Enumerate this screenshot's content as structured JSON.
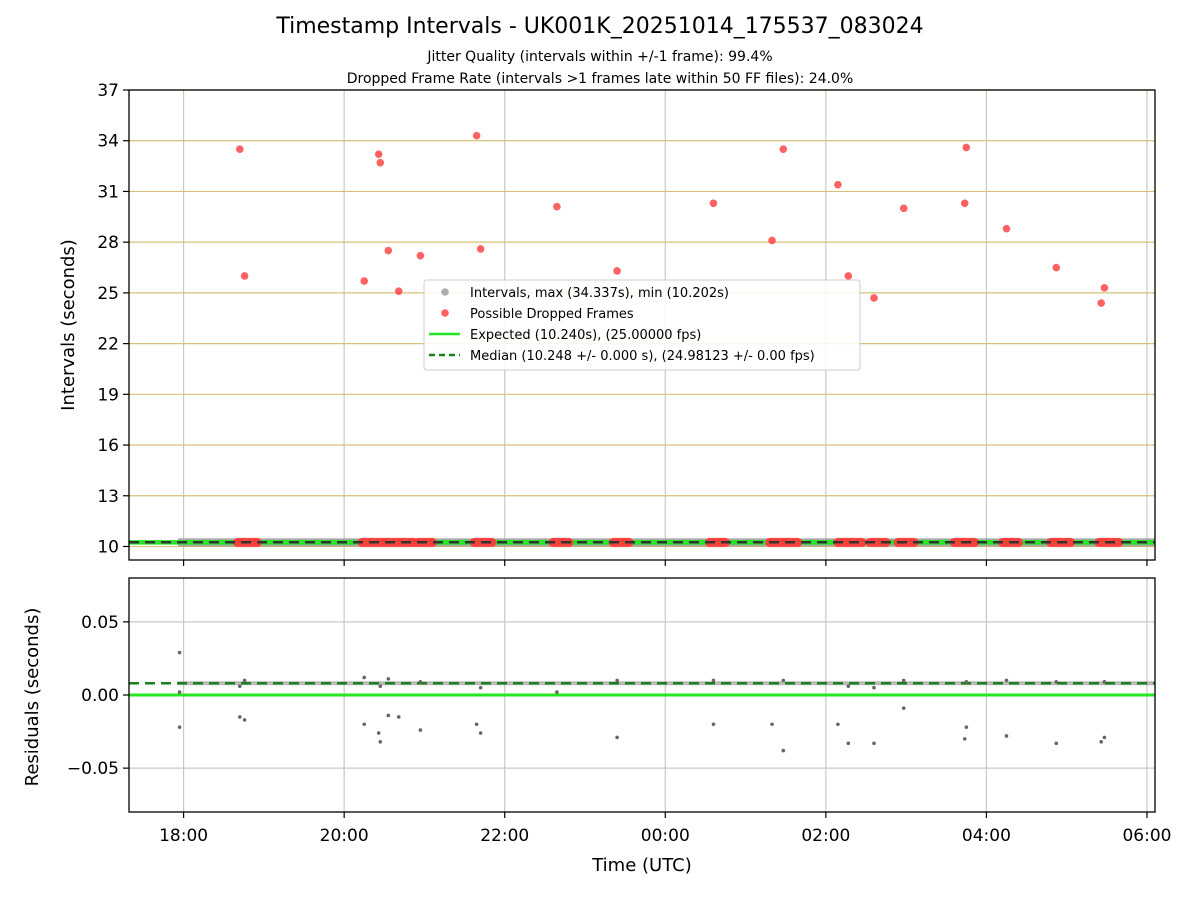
{
  "title": "Timestamp Intervals - UK001K_20251014_175537_083024",
  "subtitle_1": "Jitter Quality (intervals within +/-1 frame): 99.4%",
  "subtitle_2": "Dropped Frame Rate (intervals >1 frames late within 50 FF files): 24.0%",
  "chart_data": [
    {
      "type": "scatter",
      "panel": "top",
      "ylabel": "Intervals (seconds)",
      "ylim": [
        9.2,
        37
      ],
      "yticks": [
        10,
        13,
        16,
        19,
        22,
        25,
        28,
        31,
        34,
        37
      ],
      "xlim_hours": [
        17.32,
        30.1
      ],
      "xticks": [
        {
          "h": 18,
          "label": "18:00"
        },
        {
          "h": 20,
          "label": "20:00"
        },
        {
          "h": 22,
          "label": "22:00"
        },
        {
          "h": 24,
          "label": "00:00"
        },
        {
          "h": 26,
          "label": "02:00"
        },
        {
          "h": 28,
          "label": "04:00"
        },
        {
          "h": 30,
          "label": "06:00"
        }
      ],
      "grid": "on",
      "legend": {
        "placement": "center",
        "entries": [
          "Intervals, max (34.337s), min (10.202s)",
          "Possible Dropped Frames",
          "Expected (10.240s), (25.00000 fps)",
          "Median (10.248 +/- 0.000 s), (24.98123 +/- 0.00 fps)"
        ]
      },
      "expected": 10.24,
      "median": 10.248,
      "intervals_range_hours": [
        17.93,
        30.1
      ],
      "dropped_frames": [
        {
          "h": 18.7,
          "y": 33.5
        },
        {
          "h": 18.76,
          "y": 26.0
        },
        {
          "h": 20.25,
          "y": 25.7
        },
        {
          "h": 20.43,
          "y": 33.2
        },
        {
          "h": 20.45,
          "y": 32.7
        },
        {
          "h": 20.55,
          "y": 27.5
        },
        {
          "h": 20.68,
          "y": 25.1
        },
        {
          "h": 20.95,
          "y": 27.2
        },
        {
          "h": 21.65,
          "y": 34.3
        },
        {
          "h": 21.7,
          "y": 27.6
        },
        {
          "h": 22.65,
          "y": 30.1
        },
        {
          "h": 23.4,
          "y": 26.3
        },
        {
          "h": 24.6,
          "y": 30.3
        },
        {
          "h": 25.33,
          "y": 28.1
        },
        {
          "h": 25.47,
          "y": 33.5
        },
        {
          "h": 26.15,
          "y": 31.4
        },
        {
          "h": 26.28,
          "y": 26.0
        },
        {
          "h": 26.6,
          "y": 24.7
        },
        {
          "h": 26.97,
          "y": 30.0
        },
        {
          "h": 27.73,
          "y": 30.3
        },
        {
          "h": 27.75,
          "y": 33.6
        },
        {
          "h": 28.25,
          "y": 28.8
        },
        {
          "h": 28.87,
          "y": 26.5
        },
        {
          "h": 29.43,
          "y": 24.4
        },
        {
          "h": 29.47,
          "y": 25.3
        }
      ],
      "dropped_segments_hours": [
        [
          18.67,
          18.92
        ],
        [
          20.22,
          20.87
        ],
        [
          20.92,
          21.1
        ],
        [
          21.62,
          21.84
        ],
        [
          22.6,
          22.8
        ],
        [
          23.35,
          23.55
        ],
        [
          24.55,
          24.75
        ],
        [
          25.3,
          25.65
        ],
        [
          26.15,
          26.45
        ],
        [
          26.55,
          26.75
        ],
        [
          26.9,
          27.1
        ],
        [
          27.6,
          27.85
        ],
        [
          28.2,
          28.4
        ],
        [
          28.8,
          29.05
        ],
        [
          29.4,
          29.65
        ]
      ]
    },
    {
      "type": "scatter",
      "panel": "bottom",
      "xlabel": "Time (UTC)",
      "ylabel": "Residuals (seconds)",
      "ylim": [
        -0.08,
        0.08
      ],
      "yticks": [
        {
          "v": 0.05,
          "label": "0.05"
        },
        {
          "v": 0.0,
          "label": "0.00"
        },
        {
          "v": -0.05,
          "label": "−0.05"
        }
      ],
      "grid": "on",
      "expected_residual": 0.0,
      "median_residual": 0.008,
      "band_range_hours": [
        17.93,
        30.1
      ],
      "points": [
        {
          "h": 17.95,
          "y": 0.029
        },
        {
          "h": 17.95,
          "y": -0.022
        },
        {
          "h": 17.95,
          "y": 0.002
        },
        {
          "h": 18.7,
          "y": -0.015
        },
        {
          "h": 18.76,
          "y": -0.017
        },
        {
          "h": 18.7,
          "y": 0.006
        },
        {
          "h": 18.76,
          "y": 0.01
        },
        {
          "h": 20.25,
          "y": -0.02
        },
        {
          "h": 20.25,
          "y": 0.012
        },
        {
          "h": 20.43,
          "y": -0.026
        },
        {
          "h": 20.45,
          "y": -0.032
        },
        {
          "h": 20.55,
          "y": -0.014
        },
        {
          "h": 20.68,
          "y": -0.015
        },
        {
          "h": 20.45,
          "y": 0.006
        },
        {
          "h": 20.55,
          "y": 0.011
        },
        {
          "h": 20.95,
          "y": -0.024
        },
        {
          "h": 20.95,
          "y": 0.009
        },
        {
          "h": 21.65,
          "y": -0.02
        },
        {
          "h": 21.7,
          "y": -0.026
        },
        {
          "h": 21.7,
          "y": 0.005
        },
        {
          "h": 22.65,
          "y": 0.002
        },
        {
          "h": 23.4,
          "y": -0.029
        },
        {
          "h": 23.4,
          "y": 0.01
        },
        {
          "h": 24.6,
          "y": -0.02
        },
        {
          "h": 24.6,
          "y": 0.01
        },
        {
          "h": 25.33,
          "y": -0.02
        },
        {
          "h": 25.47,
          "y": -0.038
        },
        {
          "h": 25.47,
          "y": 0.01
        },
        {
          "h": 26.15,
          "y": -0.02
        },
        {
          "h": 26.28,
          "y": -0.033
        },
        {
          "h": 26.28,
          "y": 0.006
        },
        {
          "h": 26.6,
          "y": -0.033
        },
        {
          "h": 26.6,
          "y": 0.005
        },
        {
          "h": 26.97,
          "y": -0.009
        },
        {
          "h": 26.97,
          "y": 0.01
        },
        {
          "h": 27.73,
          "y": -0.03
        },
        {
          "h": 27.75,
          "y": -0.022
        },
        {
          "h": 27.75,
          "y": 0.009
        },
        {
          "h": 28.25,
          "y": -0.028
        },
        {
          "h": 28.25,
          "y": 0.01
        },
        {
          "h": 28.87,
          "y": -0.033
        },
        {
          "h": 28.87,
          "y": 0.009
        },
        {
          "h": 29.43,
          "y": -0.032
        },
        {
          "h": 29.47,
          "y": -0.029
        },
        {
          "h": 29.47,
          "y": 0.009
        }
      ]
    }
  ],
  "colors": {
    "dropped": "#ff3b3b",
    "intervals": "#8c8c8c",
    "expected": "#22e822",
    "median": "#1a7f1a",
    "hgrid_top": "#d8c07a",
    "grid": "#c8c8c8"
  }
}
